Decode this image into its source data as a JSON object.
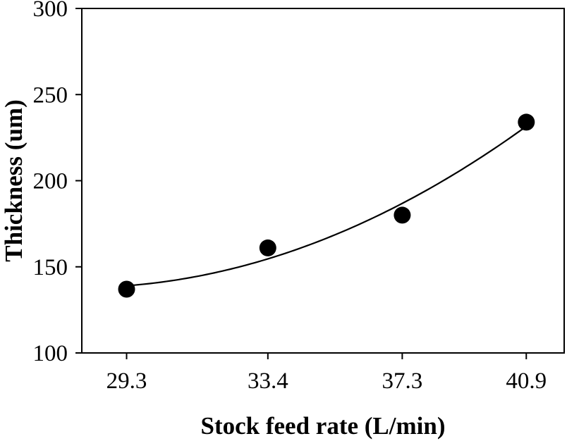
{
  "chart_data": {
    "type": "scatter",
    "xlabel": "Stock feed rate (L/min)",
    "ylabel": "Thickness (um)",
    "x": [
      29.3,
      33.4,
      37.3,
      40.9
    ],
    "y": [
      137,
      161,
      180,
      234
    ],
    "x_tick_labels": [
      "29.3",
      "33.4",
      "37.3",
      "40.9"
    ],
    "y_ticks": [
      100,
      150,
      200,
      250,
      300
    ],
    "y_tick_labels": [
      "100",
      "150",
      "200",
      "250",
      "300"
    ],
    "xlim": [
      28,
      42
    ],
    "ylim": [
      100,
      300
    ],
    "grid": false,
    "legend": "none",
    "marker_shape": "filled-circle",
    "fit_curve": {
      "type": "quadratic_least_squares",
      "from_x": 29.3,
      "to_x": 40.9
    },
    "colors": {
      "marker": "#000000",
      "curve": "#000000",
      "axis": "#000000",
      "text": "#000000",
      "background": "#ffffff"
    }
  }
}
